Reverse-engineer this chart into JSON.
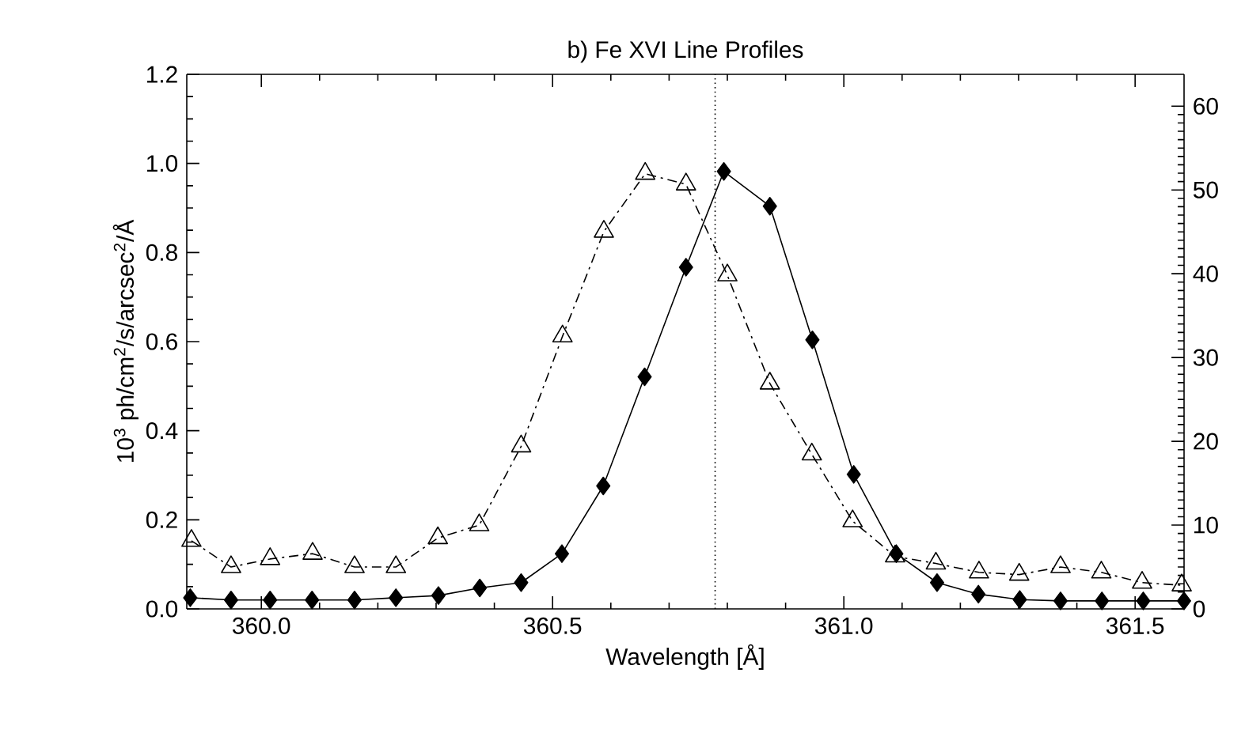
{
  "chart_data": {
    "type": "line",
    "title": "b)    Fe XVI Line Profiles",
    "xlabel": "Wavelength [Å]",
    "ylabel": "10$^{3}$ ph/cm$^{2}$/s/arcsec$^{2}$/Å",
    "xlim": [
      359.872,
      361.584
    ],
    "ylim": [
      0,
      1.2
    ],
    "y2lim": [
      0,
      63.8
    ],
    "xticks": [
      {
        "value": 360,
        "label": "360.0"
      },
      360.5,
      {
        "value": 361,
        "label": "361.0"
      },
      361.5
    ],
    "yticks": [
      {
        "value": 0,
        "label": "0.0"
      },
      0.2,
      0.4,
      0.6,
      0.8,
      {
        "value": 1,
        "label": "1.0"
      },
      1.2
    ],
    "y2ticks": [
      0,
      10,
      20,
      30,
      40,
      50,
      60
    ],
    "grid": false,
    "series": [
      {
        "color": "#000000",
        "marker": "diamond",
        "line_style": "solid",
        "x": [
          359.878,
          359.948,
          360.015,
          360.087,
          360.16,
          360.231,
          360.304,
          360.375,
          360.446,
          360.516,
          360.587,
          360.658,
          360.729,
          360.794,
          360.873,
          360.946,
          361.017,
          361.09,
          361.16,
          361.231,
          361.302,
          361.372,
          361.443,
          361.514,
          361.584
        ],
        "values": [
          0.025,
          0.02,
          0.02,
          0.02,
          0.02,
          0.025,
          0.03,
          0.047,
          0.059,
          0.124,
          0.276,
          0.521,
          0.767,
          0.982,
          0.904,
          0.604,
          0.302,
          0.124,
          0.059,
          0.033,
          0.021,
          0.018,
          0.018,
          0.018,
          0.018
        ]
      },
      {
        "color": "#000000",
        "marker": "triangle",
        "line_style": "dashed",
        "x": [
          359.88,
          359.948,
          360.015,
          360.088,
          360.16,
          360.231,
          360.303,
          360.374,
          360.446,
          360.517,
          360.588,
          360.659,
          360.729,
          360.8,
          360.873,
          360.945,
          361.015,
          361.088,
          361.158,
          361.232,
          361.301,
          361.372,
          361.442,
          361.512,
          361.58
        ],
        "values": [
          0.153,
          0.094,
          0.112,
          0.124,
          0.094,
          0.094,
          0.159,
          0.188,
          0.365,
          0.612,
          0.847,
          0.977,
          0.953,
          0.749,
          0.506,
          0.347,
          0.197,
          0.118,
          0.102,
          0.082,
          0.077,
          0.094,
          0.082,
          0.059,
          0.053
        ]
      }
    ],
    "ref_lines": [
      {
        "axis": "x",
        "value": 360.779,
        "line_style": "dotted"
      }
    ]
  }
}
